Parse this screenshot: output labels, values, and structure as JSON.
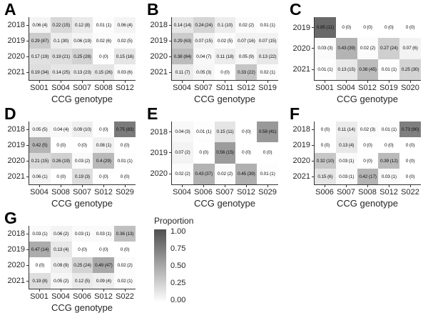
{
  "legend": {
    "title": "Proportion",
    "ticks": [
      "1.00",
      "0.75",
      "0.50",
      "0.25",
      "0.00"
    ],
    "min_color": "#ffffff",
    "max_color": "#4f4f4f"
  },
  "chart_data": [
    {
      "panel": "A",
      "type": "heatmap",
      "xlabel": "CCG genotype",
      "rows": [
        "2018",
        "2019",
        "2020",
        "2021"
      ],
      "columns": [
        "S001",
        "S004",
        "S007",
        "S008",
        "S012"
      ],
      "values": [
        [
          0.06,
          0.22,
          0.12,
          0.01,
          0.06
        ],
        [
          0.29,
          0.1,
          0.06,
          0.02,
          0.02
        ],
        [
          0.17,
          0.19,
          0.25,
          0.0,
          0.15
        ],
        [
          0.19,
          0.14,
          0.13,
          0.15,
          0.03
        ]
      ],
      "cell_labels": [
        [
          "0.06 (4)",
          "0.22 (15)",
          "0.12 (8)",
          "0.01 (1)",
          "0.06 (4)"
        ],
        [
          "0.29 (87)",
          "0.1 (30)",
          "0.06 (19)",
          "0.02 (6)",
          "0.02 (5)"
        ],
        [
          "0.17 (19)",
          "0.19 (21)",
          "0.25 (28)",
          "0 (0)",
          "0.15 (16)"
        ],
        [
          "0.19 (34)",
          "0.14 (25)",
          "0.13 (23)",
          "0.15 (26)",
          "0.03 (6)"
        ]
      ]
    },
    {
      "panel": "B",
      "type": "heatmap",
      "xlabel": "CCG genotype",
      "rows": [
        "2018",
        "2019",
        "2020",
        "2021"
      ],
      "columns": [
        "S004",
        "S007",
        "S011",
        "S012",
        "S019"
      ],
      "values": [
        [
          0.14,
          0.24,
          0.1,
          0.02,
          0.01
        ],
        [
          0.29,
          0.07,
          0.02,
          0.07,
          0.07
        ],
        [
          0.38,
          0.04,
          0.11,
          0.05,
          0.13
        ],
        [
          0.11,
          0.05,
          0.0,
          0.33,
          0.02
        ]
      ],
      "cell_labels": [
        [
          "0.14 (14)",
          "0.24 (24)",
          "0.1 (10)",
          "0.02 (2)",
          "0.01 (1)"
        ],
        [
          "0.29 (63)",
          "0.07 (15)",
          "0.02 (5)",
          "0.07 (16)",
          "0.07 (15)"
        ],
        [
          "0.38 (84)",
          "0.04 (7)",
          "0.11 (18)",
          "0.05 (9)",
          "0.13 (22)"
        ],
        [
          "0.11 (7)",
          "0.05 (3)",
          "0 (0)",
          "0.33 (22)",
          "0.02 (1)"
        ]
      ]
    },
    {
      "panel": "C",
      "type": "heatmap",
      "xlabel": "CCG genotype",
      "rows": [
        "2019",
        "2020",
        "2021"
      ],
      "columns": [
        "S001",
        "S004",
        "S012",
        "S019",
        "S020"
      ],
      "values": [
        [
          0.85,
          0.0,
          0.0,
          0.0,
          0.0
        ],
        [
          0.03,
          0.43,
          0.02,
          0.27,
          0.07
        ],
        [
          0.01,
          0.13,
          0.38,
          0.01,
          0.25
        ]
      ],
      "cell_labels": [
        [
          "0.85 (11)",
          "0 (0)",
          "0 (0)",
          "0 (0)",
          "0 (0)"
        ],
        [
          "0.03 (3)",
          "0.43 (39)",
          "0.02 (2)",
          "0.27 (24)",
          "0.07 (6)"
        ],
        [
          "0.01 (1)",
          "0.13 (15)",
          "0.38 (45)",
          "0.01 (1)",
          "0.25 (30)"
        ]
      ]
    },
    {
      "panel": "D",
      "type": "heatmap",
      "xlabel": "CCG genotype",
      "rows": [
        "2018",
        "2019",
        "2020",
        "2021"
      ],
      "columns": [
        "S004",
        "S008",
        "S007",
        "S012",
        "S029"
      ],
      "values": [
        [
          0.05,
          0.04,
          0.09,
          0.0,
          0.75
        ],
        [
          0.42,
          0.0,
          0.0,
          0.08,
          0.0
        ],
        [
          0.21,
          0.26,
          0.03,
          0.4,
          0.01
        ],
        [
          0.06,
          0.0,
          0.19,
          0.0,
          0.0
        ]
      ],
      "cell_labels": [
        [
          "0.05 (5)",
          "0.04 (4)",
          "0.09 (10)",
          "0 (0)",
          "0.75 (83)"
        ],
        [
          "0.42 (5)",
          "0 (0)",
          "0 (0)",
          "0.08 (1)",
          "0 (0)"
        ],
        [
          "0.21 (15)",
          "0.26 (19)",
          "0.03 (2)",
          "0.4 (29)",
          "0.01 (1)"
        ],
        [
          "0.06 (1)",
          "0 (0)",
          "0.19 (3)",
          "0 (0)",
          "0 (0)"
        ]
      ]
    },
    {
      "panel": "E",
      "type": "heatmap",
      "xlabel": "CCG genotype",
      "rows": [
        "2018",
        "2019",
        "2020"
      ],
      "columns": [
        "S004",
        "S006",
        "S007",
        "S012",
        "S029"
      ],
      "values": [
        [
          0.04,
          0.01,
          0.15,
          0.0,
          0.58
        ],
        [
          0.07,
          0.0,
          0.56,
          0.0,
          0.0
        ],
        [
          0.02,
          0.43,
          0.02,
          0.45,
          0.01
        ]
      ],
      "cell_labels": [
        [
          "0.04 (3)",
          "0.01 (1)",
          "0.15 (11)",
          "0 (0)",
          "0.58 (41)"
        ],
        [
          "0.07 (2)",
          "0 (0)",
          "0.56 (15)",
          "0 (0)",
          "0 (0)"
        ],
        [
          "0.02 (2)",
          "0.43 (37)",
          "0.02 (2)",
          "0.45 (39)",
          "0.01 (1)"
        ]
      ]
    },
    {
      "panel": "F",
      "type": "heatmap",
      "xlabel": "CCG genotype",
      "rows": [
        "2018",
        "2019",
        "2020",
        "2021"
      ],
      "columns": [
        "S006",
        "S007",
        "S008",
        "S012",
        "S022"
      ],
      "values": [
        [
          0.0,
          0.11,
          0.02,
          0.01,
          0.73
        ],
        [
          0.0,
          0.13,
          0.0,
          0.0,
          0.0
        ],
        [
          0.32,
          0.03,
          0.0,
          0.39,
          0.0
        ],
        [
          0.15,
          0.03,
          0.42,
          0.03,
          0.0
        ]
      ],
      "cell_labels": [
        [
          "0 (0)",
          "0.11 (14)",
          "0.02 (3)",
          "0.01 (1)",
          "0.73 (90)"
        ],
        [
          "0 (0)",
          "0.13 (4)",
          "0 (0)",
          "0 (0)",
          "0 (0)"
        ],
        [
          "0.32 (10)",
          "0.03 (1)",
          "0 (0)",
          "0.39 (12)",
          "0 (0)"
        ],
        [
          "0.15 (6)",
          "0.03 (1)",
          "0.42 (17)",
          "0.03 (1)",
          "0 (0)"
        ]
      ]
    },
    {
      "panel": "G",
      "type": "heatmap",
      "xlabel": "CCG genotype",
      "rows": [
        "2018",
        "2019",
        "2020",
        "2021"
      ],
      "columns": [
        "S001",
        "S004",
        "S006",
        "S012",
        "S022"
      ],
      "values": [
        [
          0.03,
          0.06,
          0.03,
          0.03,
          0.36
        ],
        [
          0.47,
          0.13,
          0.0,
          0.0,
          0.0
        ],
        [
          0.0,
          0.09,
          0.25,
          0.49,
          0.02
        ],
        [
          0.19,
          0.05,
          0.12,
          0.09,
          0.02
        ]
      ],
      "cell_labels": [
        [
          "0.03 (1)",
          "0.06 (2)",
          "0.03 (1)",
          "0.03 (1)",
          "0.36 (13)"
        ],
        [
          "0.47 (14)",
          "0.13 (4)",
          "0 (0)",
          "0 (0)",
          "0 (0)"
        ],
        [
          "0 (0)",
          "0.09 (9)",
          "0.25 (24)",
          "0.49 (47)",
          "0.02 (2)"
        ],
        [
          "0.19 (8)",
          "0.05 (2)",
          "0.12 (5)",
          "0.09 (4)",
          "0.02 (1)"
        ]
      ]
    }
  ]
}
